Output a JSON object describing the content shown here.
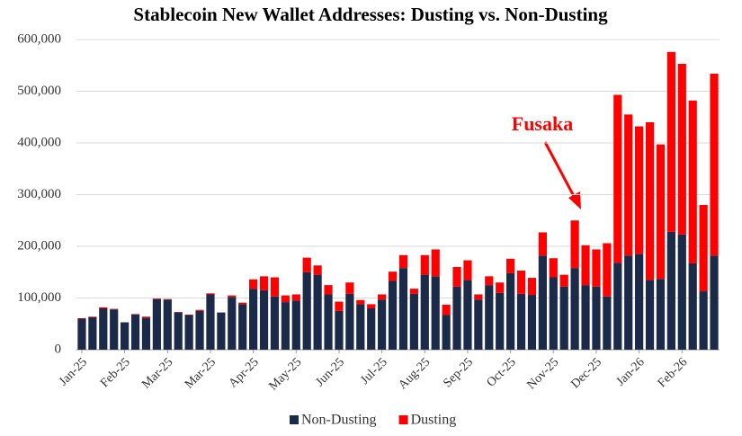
{
  "chart_data": {
    "type": "stacked_bar",
    "title": "Stablecoin New Wallet Addresses: Dusting vs. Non-Dusting",
    "annotation": "Fusaka",
    "categories": [
      "Jan-25",
      null,
      null,
      null,
      "Feb-25",
      null,
      null,
      null,
      "Mar-25",
      null,
      null,
      null,
      "Mar-25",
      null,
      null,
      null,
      "Apr-25",
      null,
      null,
      null,
      "May-25",
      null,
      null,
      null,
      "Jun-25",
      null,
      null,
      null,
      "Jul-25",
      null,
      null,
      null,
      "Aug-25",
      null,
      null,
      null,
      "Sep-25",
      null,
      null,
      null,
      "Oct-25",
      null,
      null,
      null,
      "Nov-25",
      null,
      null,
      null,
      "Dec-25",
      null,
      null,
      null,
      "Jan-26",
      null,
      null,
      null,
      "Feb-26",
      null,
      null,
      null
    ],
    "series": [
      {
        "name": "Non-Dusting",
        "color": "#1b2a48",
        "values": [
          60000,
          63000,
          80000,
          78000,
          53000,
          68000,
          62000,
          98000,
          97000,
          72000,
          67000,
          75000,
          107000,
          72000,
          102000,
          88000,
          118000,
          115000,
          103000,
          92000,
          95000,
          150000,
          145000,
          107000,
          75000,
          108000,
          88000,
          80000,
          97000,
          133000,
          158000,
          108000,
          145000,
          142000,
          67000,
          122000,
          135000,
          97000,
          125000,
          110000,
          148000,
          108000,
          106000,
          182000,
          140000,
          122000,
          158000,
          125000,
          122000,
          103000,
          168000,
          182000,
          185000,
          135000,
          137000,
          228000,
          223000,
          167000,
          113000,
          182000
        ]
      },
      {
        "name": "Dusting",
        "color": "#ff0000",
        "values": [
          1000,
          1000,
          2000,
          1000,
          0,
          1000,
          2000,
          1000,
          1000,
          1000,
          1000,
          2000,
          2000,
          0,
          3000,
          3000,
          18000,
          27000,
          37000,
          13000,
          12000,
          28000,
          18000,
          18000,
          18000,
          22000,
          8000,
          8000,
          10000,
          18000,
          25000,
          10000,
          38000,
          52000,
          20000,
          38000,
          38000,
          10000,
          17000,
          20000,
          28000,
          45000,
          33000,
          45000,
          37000,
          23000,
          92000,
          77000,
          72000,
          103000,
          325000,
          273000,
          247000,
          305000,
          260000,
          348000,
          330000,
          315000,
          167000,
          352000
        ]
      }
    ],
    "ylim": [
      0,
      600000
    ],
    "yticks": [
      0,
      {
        "value": 100000,
        "label": "100,000"
      },
      {
        "value": 200000,
        "label": "200,000"
      },
      {
        "value": 300000,
        "label": "300,000"
      },
      {
        "value": 400000,
        "label": "400,000"
      },
      {
        "value": 500000,
        "label": "500,000"
      },
      {
        "value": 600000,
        "label": "600,000"
      }
    ],
    "grid": true
  }
}
